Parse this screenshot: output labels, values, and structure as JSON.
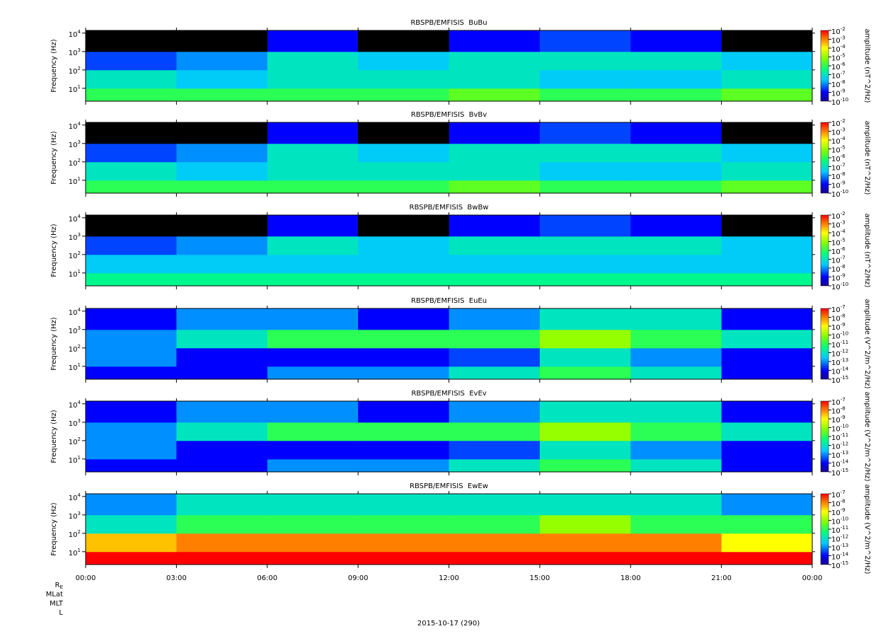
{
  "chart_data": [
    {
      "type": "heatmap",
      "title": "RBSPB/EMFISIS  BuBu",
      "ylabel": "Frequency (Hz)",
      "clabel": "amplitude (nT^2/Hz)",
      "xlim": [
        0,
        24
      ],
      "ylim": [
        2,
        14000
      ],
      "log_y": true,
      "yticks": [
        {
          "value": 10,
          "label": "10^1"
        },
        {
          "value": 100,
          "label": "10^2"
        },
        {
          "value": 1000,
          "label": "10^3"
        },
        {
          "value": 10000,
          "label": "10^4"
        }
      ],
      "clim": [
        1e-10,
        0.01
      ],
      "cticks": [
        {
          "value": 0.01,
          "label": "10^-2"
        },
        {
          "value": 0.001,
          "label": "10^-3"
        },
        {
          "value": 0.0001,
          "label": "10^-4"
        },
        {
          "value": 1e-05,
          "label": "10^-5"
        },
        {
          "value": 1e-06,
          "label": "10^-6"
        },
        {
          "value": 1e-07,
          "label": "10^-7"
        },
        {
          "value": 1e-08,
          "label": "10^-8"
        },
        {
          "value": 1e-09,
          "label": "10^-9"
        },
        {
          "value": 1e-10,
          "label": "10^-10"
        }
      ],
      "x_edges": [
        0,
        3,
        6,
        9,
        12,
        15,
        18,
        21,
        24
      ],
      "y_edges": [
        2,
        10,
        100,
        1000,
        14000
      ],
      "z": [
        [
          1e-06,
          1e-06,
          1e-06,
          1e-06,
          3e-06,
          1e-06,
          1e-06,
          3e-06
        ],
        [
          1e-07,
          3e-08,
          1e-07,
          1e-07,
          1e-07,
          3e-08,
          3e-08,
          1e-07
        ],
        [
          3e-09,
          1e-08,
          1e-07,
          3e-08,
          1e-07,
          1e-07,
          1e-07,
          3e-08
        ],
        [
          null,
          null,
          1e-09,
          null,
          1e-09,
          3e-09,
          1e-09,
          null
        ]
      ]
    },
    {
      "type": "heatmap",
      "title": "RBSPB/EMFISIS  BvBv",
      "ylabel": "Frequency (Hz)",
      "clabel": "amplitude (nT^2/Hz)",
      "xlim": [
        0,
        24
      ],
      "ylim": [
        2,
        14000
      ],
      "log_y": true,
      "yticks": [
        {
          "value": 10,
          "label": "10^1"
        },
        {
          "value": 100,
          "label": "10^2"
        },
        {
          "value": 1000,
          "label": "10^3"
        },
        {
          "value": 10000,
          "label": "10^4"
        }
      ],
      "clim": [
        1e-10,
        0.01
      ],
      "cticks": [
        {
          "value": 0.01,
          "label": "10^-2"
        },
        {
          "value": 0.001,
          "label": "10^-3"
        },
        {
          "value": 0.0001,
          "label": "10^-4"
        },
        {
          "value": 1e-05,
          "label": "10^-5"
        },
        {
          "value": 1e-06,
          "label": "10^-6"
        },
        {
          "value": 1e-07,
          "label": "10^-7"
        },
        {
          "value": 1e-08,
          "label": "10^-8"
        },
        {
          "value": 1e-09,
          "label": "10^-9"
        },
        {
          "value": 1e-10,
          "label": "10^-10"
        }
      ],
      "x_edges": [
        0,
        3,
        6,
        9,
        12,
        15,
        18,
        21,
        24
      ],
      "y_edges": [
        2,
        10,
        100,
        1000,
        14000
      ],
      "z": [
        [
          1e-06,
          1e-06,
          1e-06,
          1e-06,
          3e-06,
          1e-06,
          1e-06,
          3e-06
        ],
        [
          1e-07,
          3e-08,
          1e-07,
          1e-07,
          1e-07,
          3e-08,
          3e-08,
          1e-07
        ],
        [
          3e-09,
          1e-08,
          1e-07,
          3e-08,
          1e-07,
          1e-07,
          1e-07,
          3e-08
        ],
        [
          null,
          null,
          1e-09,
          null,
          1e-09,
          3e-09,
          1e-09,
          null
        ]
      ]
    },
    {
      "type": "heatmap",
      "title": "RBSPB/EMFISIS  BwBw",
      "ylabel": "Frequency (Hz)",
      "clabel": "amplitude (nT^2/Hz)",
      "xlim": [
        0,
        24
      ],
      "ylim": [
        2,
        14000
      ],
      "log_y": true,
      "yticks": [
        {
          "value": 10,
          "label": "10^1"
        },
        {
          "value": 100,
          "label": "10^2"
        },
        {
          "value": 1000,
          "label": "10^3"
        },
        {
          "value": 10000,
          "label": "10^4"
        }
      ],
      "clim": [
        1e-10,
        0.01
      ],
      "cticks": [
        {
          "value": 0.01,
          "label": "10^-2"
        },
        {
          "value": 0.001,
          "label": "10^-3"
        },
        {
          "value": 0.0001,
          "label": "10^-4"
        },
        {
          "value": 1e-05,
          "label": "10^-5"
        },
        {
          "value": 1e-06,
          "label": "10^-6"
        },
        {
          "value": 1e-07,
          "label": "10^-7"
        },
        {
          "value": 1e-08,
          "label": "10^-8"
        },
        {
          "value": 1e-09,
          "label": "10^-9"
        },
        {
          "value": 1e-10,
          "label": "10^-10"
        }
      ],
      "x_edges": [
        0,
        3,
        6,
        9,
        12,
        15,
        18,
        21,
        24
      ],
      "y_edges": [
        2,
        10,
        100,
        1000,
        14000
      ],
      "z": [
        [
          3e-07,
          3e-07,
          3e-07,
          3e-07,
          3e-07,
          3e-07,
          3e-07,
          3e-07
        ],
        [
          3e-08,
          3e-08,
          3e-08,
          3e-08,
          3e-08,
          3e-08,
          3e-08,
          3e-08
        ],
        [
          3e-09,
          1e-08,
          1e-07,
          3e-08,
          1e-07,
          1e-07,
          1e-07,
          3e-08
        ],
        [
          null,
          null,
          1e-09,
          null,
          1e-09,
          3e-09,
          1e-09,
          null
        ]
      ]
    },
    {
      "type": "heatmap",
      "title": "RBSPB/EMFISIS  EuEu",
      "ylabel": "Frequency (Hz)",
      "clabel": "amplitude (V^2/m^2/Hz)",
      "xlim": [
        0,
        24
      ],
      "ylim": [
        2,
        14000
      ],
      "log_y": true,
      "yticks": [
        {
          "value": 10,
          "label": "10^1"
        },
        {
          "value": 100,
          "label": "10^2"
        },
        {
          "value": 1000,
          "label": "10^3"
        },
        {
          "value": 10000,
          "label": "10^4"
        }
      ],
      "clim": [
        1e-15,
        1e-07
      ],
      "cticks": [
        {
          "value": 1e-07,
          "label": "10^-7"
        },
        {
          "value": 1e-08,
          "label": "10^-8"
        },
        {
          "value": 1e-09,
          "label": "10^-9"
        },
        {
          "value": 1e-10,
          "label": "10^-10"
        },
        {
          "value": 1e-11,
          "label": "10^-11"
        },
        {
          "value": 1e-12,
          "label": "10^-12"
        },
        {
          "value": 1e-13,
          "label": "10^-13"
        },
        {
          "value": 1e-14,
          "label": "10^-14"
        },
        {
          "value": 1e-15,
          "label": "10^-15"
        }
      ],
      "x_edges": [
        0,
        3,
        6,
        9,
        12,
        15,
        18,
        21,
        24
      ],
      "y_edges": [
        2,
        10,
        100,
        1000,
        14000
      ],
      "z": [
        [
          1e-14,
          1e-14,
          1e-13,
          1e-13,
          1e-12,
          1e-11,
          1e-12,
          1e-14
        ],
        [
          1e-13,
          1e-14,
          1e-14,
          1e-14,
          3e-14,
          1e-12,
          1e-13,
          1e-14
        ],
        [
          1e-13,
          1e-12,
          1e-11,
          1e-11,
          1e-11,
          1e-10,
          1e-11,
          1e-12
        ],
        [
          1e-14,
          1e-13,
          1e-13,
          1e-14,
          1e-13,
          1e-12,
          1e-12,
          1e-14
        ]
      ]
    },
    {
      "type": "heatmap",
      "title": "RBSPB/EMFISIS  EvEv",
      "ylabel": "Frequency (Hz)",
      "clabel": "amplitude (V^2/m^2/Hz)",
      "xlim": [
        0,
        24
      ],
      "ylim": [
        2,
        14000
      ],
      "log_y": true,
      "yticks": [
        {
          "value": 10,
          "label": "10^1"
        },
        {
          "value": 100,
          "label": "10^2"
        },
        {
          "value": 1000,
          "label": "10^3"
        },
        {
          "value": 10000,
          "label": "10^4"
        }
      ],
      "clim": [
        1e-15,
        1e-07
      ],
      "cticks": [
        {
          "value": 1e-07,
          "label": "10^-7"
        },
        {
          "value": 1e-08,
          "label": "10^-8"
        },
        {
          "value": 1e-09,
          "label": "10^-9"
        },
        {
          "value": 1e-10,
          "label": "10^-10"
        },
        {
          "value": 1e-11,
          "label": "10^-11"
        },
        {
          "value": 1e-12,
          "label": "10^-12"
        },
        {
          "value": 1e-13,
          "label": "10^-13"
        },
        {
          "value": 1e-14,
          "label": "10^-14"
        },
        {
          "value": 1e-15,
          "label": "10^-15"
        }
      ],
      "x_edges": [
        0,
        3,
        6,
        9,
        12,
        15,
        18,
        21,
        24
      ],
      "y_edges": [
        2,
        10,
        100,
        1000,
        14000
      ],
      "z": [
        [
          1e-14,
          1e-14,
          1e-13,
          1e-13,
          1e-12,
          1e-11,
          1e-12,
          1e-14
        ],
        [
          1e-13,
          1e-14,
          1e-14,
          1e-14,
          3e-14,
          1e-12,
          1e-13,
          1e-14
        ],
        [
          1e-13,
          1e-12,
          1e-11,
          1e-11,
          1e-11,
          1e-10,
          1e-11,
          1e-12
        ],
        [
          1e-14,
          1e-13,
          1e-13,
          1e-14,
          1e-13,
          1e-12,
          1e-12,
          1e-14
        ]
      ]
    },
    {
      "type": "heatmap",
      "title": "RBSPB/EMFISIS  EwEw",
      "ylabel": "Frequency (Hz)",
      "clabel": "amplitude (V^2/m^2/Hz)",
      "xlim": [
        0,
        24
      ],
      "ylim": [
        2,
        14000
      ],
      "log_y": true,
      "yticks": [
        {
          "value": 10,
          "label": "10^1"
        },
        {
          "value": 100,
          "label": "10^2"
        },
        {
          "value": 1000,
          "label": "10^3"
        },
        {
          "value": 10000,
          "label": "10^4"
        }
      ],
      "clim": [
        1e-15,
        1e-07
      ],
      "cticks": [
        {
          "value": 1e-07,
          "label": "10^-7"
        },
        {
          "value": 1e-08,
          "label": "10^-8"
        },
        {
          "value": 1e-09,
          "label": "10^-9"
        },
        {
          "value": 1e-10,
          "label": "10^-10"
        },
        {
          "value": 1e-11,
          "label": "10^-11"
        },
        {
          "value": 1e-12,
          "label": "10^-12"
        },
        {
          "value": 1e-13,
          "label": "10^-13"
        },
        {
          "value": 1e-14,
          "label": "10^-14"
        },
        {
          "value": 1e-15,
          "label": "10^-15"
        }
      ],
      "x_edges": [
        0,
        3,
        6,
        9,
        12,
        15,
        18,
        21,
        24
      ],
      "y_edges": [
        2,
        10,
        100,
        1000,
        14000
      ],
      "z": [
        [
          1e-07,
          1e-07,
          1e-07,
          1e-07,
          1e-07,
          1e-07,
          1e-07,
          1e-07
        ],
        [
          3e-09,
          1e-08,
          1e-08,
          1e-08,
          1e-08,
          1e-08,
          1e-08,
          1e-09
        ],
        [
          1e-12,
          1e-11,
          1e-11,
          1e-11,
          1e-11,
          1e-10,
          1e-11,
          1e-11
        ],
        [
          1e-13,
          1e-12,
          1e-12,
          1e-12,
          1e-12,
          1e-12,
          1e-12,
          1e-13
        ]
      ],
      "xticks": [
        {
          "value": 0,
          "label": "00:00"
        },
        {
          "value": 3,
          "label": "03:00"
        },
        {
          "value": 6,
          "label": "06:00"
        },
        {
          "value": 9,
          "label": "09:00"
        },
        {
          "value": 12,
          "label": "12:00"
        },
        {
          "value": 15,
          "label": "15:00"
        },
        {
          "value": 18,
          "label": "18:00"
        },
        {
          "value": 21,
          "label": "21:00"
        },
        {
          "value": 24,
          "label": "00:00"
        }
      ]
    }
  ],
  "ephemeris_labels": [
    "R_E",
    "MLat",
    "MLT",
    "L"
  ],
  "date_label": "2015-10-17 (290)"
}
